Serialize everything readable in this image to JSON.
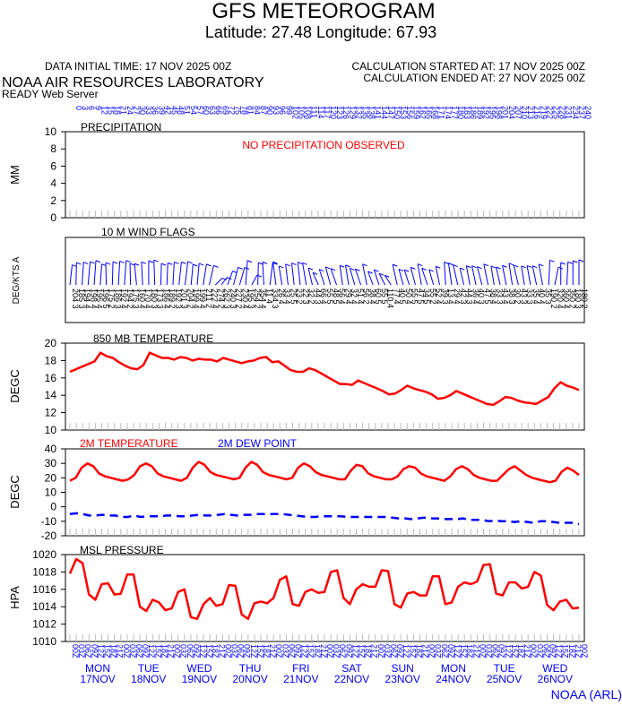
{
  "header": {
    "title": "GFS METEOROGRAM",
    "subtitle": "Latitude: 27.48 Longitude:  67.93",
    "data_initial": "DATA INITIAL TIME: 17 NOV 2025 00Z",
    "calc_started": "CALCULATION STARTED AT: 17 NOV 2025 00Z",
    "calc_ended": "CALCULATION ENDED AT: 27 NOV 2025 00Z",
    "lab": "NOAA AIR RESOURCES LABORATORY",
    "server": "READY Web Server"
  },
  "footer": {
    "credit": "NOAA (ARL)"
  },
  "days": [
    {
      "dow": "MON",
      "date": "17NOV"
    },
    {
      "dow": "TUE",
      "date": "18NOV"
    },
    {
      "dow": "WED",
      "date": "19NOV"
    },
    {
      "dow": "THU",
      "date": "20NOV"
    },
    {
      "dow": "FRI",
      "date": "21NOV"
    },
    {
      "dow": "SAT",
      "date": "22NOV"
    },
    {
      "dow": "SUN",
      "date": "23NOV"
    },
    {
      "dow": "MON",
      "date": "24NOV"
    },
    {
      "dow": "TUE",
      "date": "25NOV"
    },
    {
      "dow": "WED",
      "date": "26NOV"
    }
  ],
  "colors": {
    "red": "#ff0000",
    "blue": "#0000ff",
    "black": "#000000"
  },
  "chart_data": [
    {
      "type": "line",
      "title": "PRECIPITATION",
      "ylabel": "MM",
      "ylim": [
        0,
        10
      ],
      "yticks": [
        0,
        2,
        4,
        6,
        8,
        10
      ],
      "note": "NO PRECIPITATION OBSERVED",
      "series": []
    },
    {
      "type": "scatter",
      "title": "10 M  WIND FLAGS",
      "ylabel": "DEG/KTS  A",
      "directions": [
        204,
        185,
        194,
        198,
        195,
        196,
        175,
        186,
        192,
        194,
        175,
        160,
        170,
        180,
        173,
        186,
        189,
        192,
        201,
        204,
        199,
        199,
        211,
        222,
        274,
        262,
        240,
        227,
        230,
        195,
        254,
        354,
        11,
        334,
        26,
        33,
        25,
        23,
        22,
        32,
        44,
        66,
        55,
        48,
        56,
        29,
        32,
        51,
        56,
        38,
        60,
        55,
        110,
        77,
        40,
        50,
        55,
        47,
        34,
        55,
        52,
        39,
        13,
        29,
        42,
        44,
        36,
        40,
        47,
        38,
        33,
        43,
        38,
        30,
        43,
        33,
        35,
        40,
        35,
        190,
        320,
        360,
        350,
        180,
        180
      ],
      "speeds": [
        3,
        3,
        4,
        4,
        4,
        5,
        2,
        3,
        4,
        2,
        3,
        4,
        4,
        3,
        3,
        4,
        2,
        3,
        3,
        2,
        4,
        4,
        2,
        4,
        2,
        3,
        3,
        2,
        4,
        3,
        2,
        4,
        4,
        3,
        4,
        4,
        5,
        2,
        3,
        2,
        3,
        4,
        5,
        5,
        4,
        4,
        4,
        4,
        2,
        4,
        5,
        5,
        4,
        4,
        5,
        4,
        5,
        5,
        5,
        2,
        4,
        3,
        4,
        4,
        3,
        3,
        4,
        3,
        5,
        4,
        3,
        4,
        3,
        2,
        3,
        3,
        4,
        4,
        3,
        2,
        4,
        4,
        2,
        3,
        2
      ]
    },
    {
      "type": "line",
      "title": "850 MB  TEMPERATURE",
      "ylabel": "DEGC",
      "ylim": [
        10,
        20
      ],
      "yticks": [
        10,
        12,
        14,
        16,
        18,
        20
      ],
      "series": [
        {
          "name": "",
          "values": [
            16.7,
            17.0,
            17.3,
            17.6,
            17.9,
            18.9,
            18.5,
            18.3,
            17.8,
            17.4,
            17.1,
            17.0,
            17.5,
            18.9,
            18.6,
            18.3,
            18.3,
            18.1,
            18.4,
            18.3,
            18.0,
            18.2,
            18.1,
            18.1,
            17.9,
            18.3,
            18.1,
            17.9,
            17.7,
            17.9,
            18.0,
            18.3,
            18.4,
            17.8,
            17.9,
            17.4,
            16.9,
            16.7,
            16.7,
            17.1,
            16.9,
            16.5,
            16.1,
            15.7,
            15.3,
            15.3,
            15.2,
            15.7,
            15.4,
            15.1,
            14.8,
            14.5,
            14.1,
            14.2,
            14.6,
            15.1,
            14.8,
            14.6,
            14.4,
            14.1,
            13.6,
            13.7,
            14.0,
            14.5,
            14.2,
            13.9,
            13.6,
            13.3,
            13.0,
            12.9,
            13.3,
            13.8,
            13.7,
            13.4,
            13.2,
            13.1,
            13.0,
            13.4,
            13.8,
            14.8,
            15.5,
            15.1,
            14.9,
            14.6
          ]
        }
      ]
    },
    {
      "type": "line",
      "title": "",
      "ylabel": "DEGC",
      "ylim": [
        -20,
        40
      ],
      "yticks": [
        -20,
        -10,
        0,
        10,
        20,
        30,
        40
      ],
      "series": [
        {
          "name": "2M TEMPERATURE",
          "values": [
            18,
            20,
            27,
            30,
            28,
            23,
            21,
            20,
            19,
            18,
            19,
            22,
            28,
            30,
            28,
            23,
            21,
            20,
            19,
            18,
            20,
            27,
            31,
            29,
            24,
            22,
            21,
            20,
            19,
            20,
            27,
            31,
            29,
            24,
            22,
            21,
            20,
            19,
            20,
            27,
            30,
            28,
            24,
            22,
            21,
            20,
            19,
            19,
            25,
            29,
            28,
            23,
            21,
            20,
            19,
            19,
            21,
            26,
            28,
            27,
            23,
            21,
            20,
            19,
            18,
            21,
            26,
            28,
            26,
            22,
            20,
            19,
            18,
            18,
            22,
            26,
            28,
            25,
            22,
            20,
            19,
            18,
            17,
            18,
            24,
            27,
            25,
            22
          ]
        },
        {
          "name": "2M  DEW POINT",
          "values": [
            -5,
            -4.5,
            -5,
            -6,
            -6,
            -5.5,
            -6,
            -6,
            -7,
            -7,
            -6,
            -7,
            -6.5,
            -6.5,
            -6.5,
            -6,
            -6,
            -6.5,
            -6.5,
            -6,
            -5.5,
            -6,
            -6,
            -5.5,
            -5,
            -5.5,
            -6,
            -5.5,
            -5.5,
            -5,
            -5,
            -5,
            -5,
            -5,
            -5.5,
            -6,
            -6.5,
            -7,
            -7,
            -6.5,
            -6.5,
            -6.5,
            -6.5,
            -7,
            -7,
            -7,
            -7,
            -7,
            -7,
            -7,
            -7.5,
            -8,
            -8,
            -8.5,
            -8,
            -7.5,
            -8,
            -8,
            -8.5,
            -8.5,
            -8.5,
            -8,
            -9,
            -9,
            -9,
            -10,
            -9.5,
            -10,
            -10,
            -10.5,
            -10,
            -10.5,
            -11,
            -10,
            -10,
            -10.5,
            -11,
            -11,
            -11,
            -12
          ]
        }
      ]
    },
    {
      "type": "line",
      "title": "MSL PRESSURE",
      "ylabel": "HPA",
      "ylim": [
        1010,
        1020
      ],
      "yticks": [
        1010,
        1012,
        1014,
        1016,
        1018,
        1020
      ],
      "series": [
        {
          "name": "",
          "values": [
            1017.8,
            1019.5,
            1019.0,
            1015.4,
            1014.8,
            1016.6,
            1016.7,
            1015.4,
            1015.5,
            1017.7,
            1017.7,
            1014.0,
            1013.5,
            1014.8,
            1014.5,
            1013.6,
            1013.8,
            1015.7,
            1016.0,
            1012.8,
            1012.6,
            1014.3,
            1015.0,
            1014.1,
            1014.3,
            1016.5,
            1016.4,
            1013.1,
            1012.6,
            1014.4,
            1014.6,
            1014.4,
            1015.0,
            1017.1,
            1017.5,
            1014.3,
            1014.1,
            1015.7,
            1016.0,
            1015.6,
            1015.7,
            1018.0,
            1018.2,
            1015.0,
            1014.3,
            1016.0,
            1016.6,
            1016.3,
            1016.3,
            1018.2,
            1018.1,
            1014.3,
            1013.9,
            1015.5,
            1015.7,
            1015.3,
            1015.3,
            1017.5,
            1017.5,
            1014.3,
            1014.5,
            1016.3,
            1016.8,
            1016.6,
            1016.9,
            1018.8,
            1018.9,
            1015.5,
            1015.3,
            1016.8,
            1016.8,
            1016.1,
            1016.3,
            1018.0,
            1017.6,
            1014.2,
            1013.6,
            1014.6,
            1014.8,
            1013.8,
            1013.9
          ]
        }
      ]
    }
  ]
}
